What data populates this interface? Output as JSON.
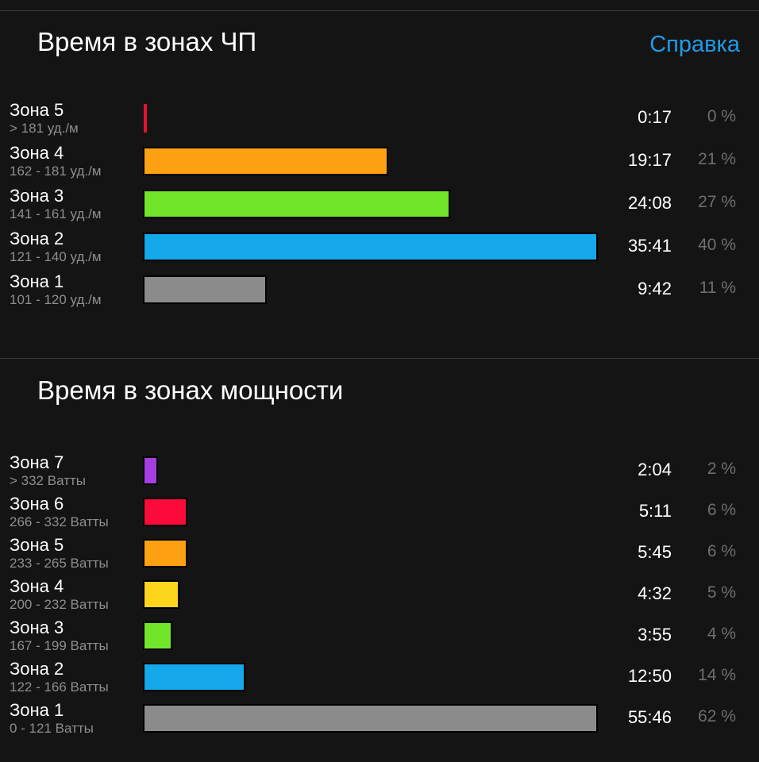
{
  "hr_section": {
    "title": "Время в зонах ЧП",
    "help_label": "Справка",
    "zones": [
      {
        "name": "Зона 5",
        "range": "> 181 уд./м",
        "time": "0:17",
        "percent": "0 %",
        "color": "#e8102e",
        "bar_fraction": 0.006
      },
      {
        "name": "Зона 4",
        "range": "162 - 181 уд./м",
        "time": "19:17",
        "percent": "21 %",
        "color": "#fda113",
        "bar_fraction": 0.54
      },
      {
        "name": "Зона 3",
        "range": "141 - 161 уд./м",
        "time": "24:08",
        "percent": "27 %",
        "color": "#70e52a",
        "bar_fraction": 0.676
      },
      {
        "name": "Зона 2",
        "range": "121 - 140 уд./м",
        "time": "35:41",
        "percent": "40 %",
        "color": "#15a8ea",
        "bar_fraction": 1.0
      },
      {
        "name": "Зона 1",
        "range": "101 - 120 уд./м",
        "time": "9:42",
        "percent": "11 %",
        "color": "#8b8b8b",
        "bar_fraction": 0.272
      }
    ]
  },
  "power_section": {
    "title": "Время в зонах мощности",
    "zones": [
      {
        "name": "Зона 7",
        "range": "> 332 Ватты",
        "time": "2:04",
        "percent": "2 %",
        "color": "#a43ee0",
        "bar_fraction": 0.033
      },
      {
        "name": "Зона 6",
        "range": "266 - 332 Ватты",
        "time": "5:11",
        "percent": "6 %",
        "color": "#fb0a3a",
        "bar_fraction": 0.097
      },
      {
        "name": "Зона 5",
        "range": "233 - 265 Ватты",
        "time": "5:45",
        "percent": "6 %",
        "color": "#fda113",
        "bar_fraction": 0.097
      },
      {
        "name": "Зона 4",
        "range": "200 - 232 Ватты",
        "time": "4:32",
        "percent": "5 %",
        "color": "#fbd41b",
        "bar_fraction": 0.081
      },
      {
        "name": "Зона 3",
        "range": "167 - 199 Ватты",
        "time": "3:55",
        "percent": "4 %",
        "color": "#70e52a",
        "bar_fraction": 0.065
      },
      {
        "name": "Зона 2",
        "range": "122 - 166 Ватты",
        "time": "12:50",
        "percent": "14 %",
        "color": "#15a8ea",
        "bar_fraction": 0.226
      },
      {
        "name": "Зона 1",
        "range": "0 - 121 Ватты",
        "time": "55:46",
        "percent": "62 %",
        "color": "#8b8b8b",
        "bar_fraction": 1.0
      }
    ]
  }
}
